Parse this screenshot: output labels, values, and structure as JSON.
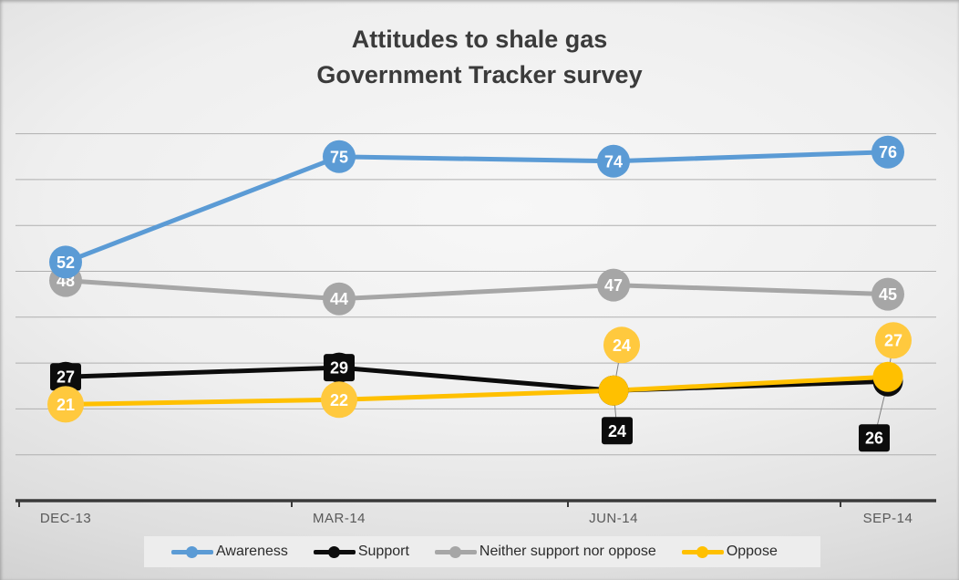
{
  "title": {
    "line1": "Attitudes to shale gas",
    "line2": "Government Tracker survey"
  },
  "chart_data": {
    "type": "line",
    "title": "Attitudes to shale gas — Government Tracker survey",
    "categories": [
      "DEC-13",
      "MAR-14",
      "JUN-14",
      "SEP-14"
    ],
    "series": [
      {
        "name": "Awareness",
        "color": "#5B9BD5",
        "values": [
          52,
          75,
          74,
          76
        ],
        "marker": "circle",
        "label_shape": "circle",
        "label_radius": 18,
        "label_fill": "#5B9BD5",
        "label_offsets": [
          [
            0,
            0
          ],
          [
            0,
            0
          ],
          [
            0,
            0
          ],
          [
            0,
            0
          ]
        ]
      },
      {
        "name": "Support",
        "color": "#0C0C0C",
        "values": [
          27,
          29,
          24,
          26
        ],
        "marker": "circle",
        "label_shape": "square",
        "label_box": [
          34,
          30
        ],
        "label_fill": "#0C0C0C",
        "label_offsets": [
          [
            0,
            0
          ],
          [
            0,
            0
          ],
          [
            4,
            44
          ],
          [
            -15,
            62
          ]
        ]
      },
      {
        "name": "Neither support nor oppose",
        "color": "#A6A6A6",
        "values": [
          48,
          44,
          47,
          45
        ],
        "marker": "circle",
        "label_shape": "circle",
        "label_radius": 18,
        "label_fill": "#A6A6A6",
        "label_offsets": [
          [
            0,
            0
          ],
          [
            0,
            0
          ],
          [
            0,
            0
          ],
          [
            0,
            0
          ]
        ]
      },
      {
        "name": "Oppose",
        "color": "#FFC000",
        "values": [
          21,
          22,
          24,
          27
        ],
        "marker": "circle",
        "label_shape": "circle",
        "label_radius": 20,
        "label_fill": "#FFC93E",
        "label_offsets": [
          [
            0,
            0
          ],
          [
            0,
            0
          ],
          [
            9,
            -50
          ],
          [
            6,
            -40
          ]
        ]
      }
    ],
    "ylim": [
      0,
      85
    ],
    "grid": true,
    "gridline_step": 10,
    "gridline_max": 80,
    "legend_position": "bottom",
    "data_label_text_color": "#FFFFFF"
  },
  "style": {
    "gridline_color": "#AFAFAF",
    "axis_line_color": "#3A3A3A",
    "axis_label_color": "#595959",
    "leader_line_color": "#808080",
    "legend_bg": "#EDEDED",
    "legend_text_color": "#2B2B2B",
    "title_color": "#3B3B3B"
  }
}
